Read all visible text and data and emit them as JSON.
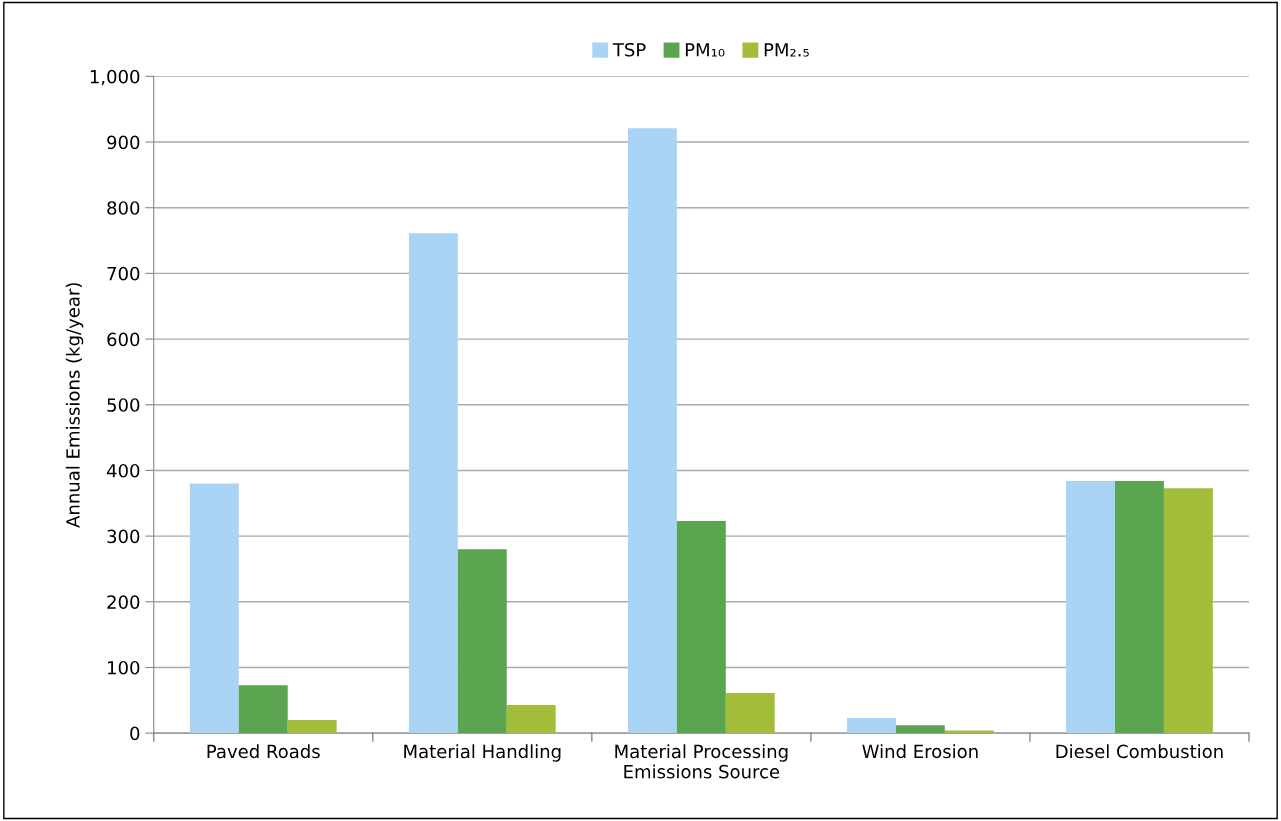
{
  "chart_data": {
    "type": "bar",
    "xlabel": "Emissions Source",
    "ylabel": "Annual Emissions (kg/year)",
    "categories": [
      "Paved Roads",
      "Material Handling",
      "Material Processing",
      "Wind Erosion",
      "Diesel Combustion"
    ],
    "series": [
      {
        "name": "TSP",
        "color": "#a9d4f5",
        "values": [
          380,
          761,
          921,
          23,
          384
        ]
      },
      {
        "name": "PM₁₀",
        "color": "#5ba550",
        "values": [
          73,
          280,
          323,
          12,
          384
        ]
      },
      {
        "name": "PM₂.₅",
        "color": "#a2bd3a",
        "values": [
          20,
          43,
          61,
          4,
          373
        ]
      }
    ],
    "ylim": [
      0,
      1000
    ],
    "yticks": [
      0,
      {
        "value": 100,
        "label": "100"
      },
      200,
      300,
      400,
      500,
      600,
      700,
      800,
      900,
      {
        "value": 1000,
        "label": "1,000"
      }
    ],
    "grid": "y",
    "legend": "top"
  }
}
